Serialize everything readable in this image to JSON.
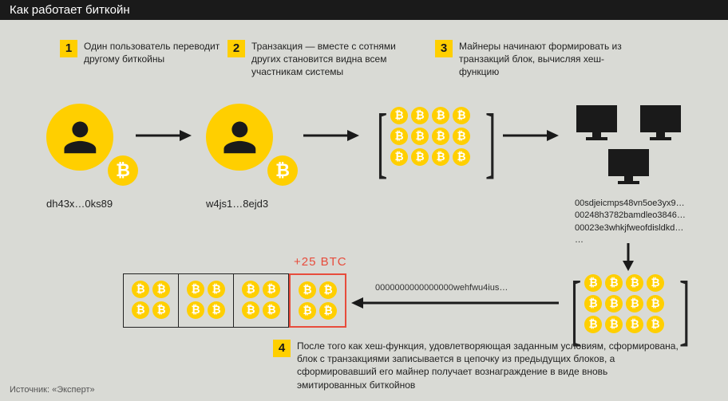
{
  "title": "Как работает биткойн",
  "source": "Источник: «Эксперт»",
  "steps": {
    "s1": {
      "n": "1",
      "t": "Один пользователь переводит другому биткойны"
    },
    "s2": {
      "n": "2",
      "t": "Транзакция — вместе с сотнями других становится видна всем участникам системы"
    },
    "s3": {
      "n": "3",
      "t": "Майнеры начинают формировать из транзакций блок, вычисляя хеш-функцию"
    },
    "s4": {
      "n": "4",
      "t": "После того как хеш-функция, удовлетворяющая заданным условиям, сформирована, блок с транзакциями записывается в цепочку из предыдущих блоков, а сформировавший его майнер получает вознаграждение в виде вновь эмитированных биткойнов"
    }
  },
  "users": {
    "a": "dh43x…0ks89",
    "b": "w4js1…8ejd3"
  },
  "reward": "+25 BTC",
  "longhash": "0000000000000000wehfwu4ius…",
  "hashes": {
    "h1": "00sdjeicmps48vn5oe3yx9…",
    "h2": "00248h3782bamdleo3846…",
    "h3": "00023e3whkjfweofdisldkd…",
    "h4": "…"
  },
  "colors": {
    "yellow": "#ffcf00",
    "dark": "#1a1a1a",
    "red": "#e74c3c",
    "bg": "#d9dad5"
  },
  "coin_glyph": "₿",
  "tx_grid": {
    "cols": 4,
    "rows": 3,
    "coin_size": 22
  },
  "chain_grid": {
    "blocks": 4,
    "cols": 2,
    "rows": 2,
    "coin_size": 22
  },
  "user_circle_d": 84,
  "transfer_coin_d": 38
}
